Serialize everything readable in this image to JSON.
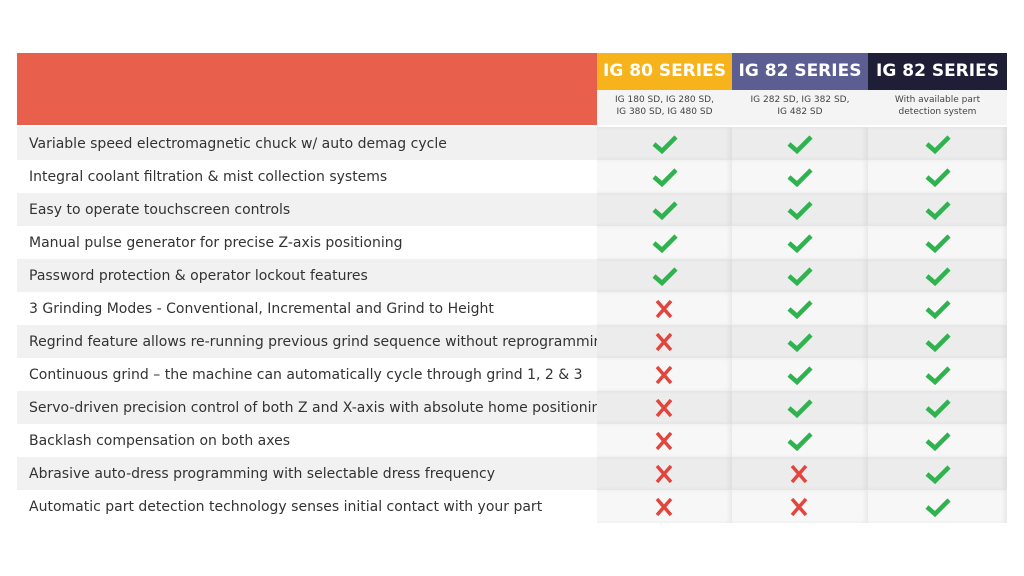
{
  "header": {
    "columns": [
      {
        "title": "IG 80 SERIES",
        "subtitle": "IG 180 SD, IG 280 SD,\nIG 380 SD, IG 480 SD"
      },
      {
        "title": "IG 82 SERIES",
        "subtitle": "IG 282 SD, IG 382 SD,\nIG 482 SD"
      },
      {
        "title": "IG 82 SERIES",
        "subtitle": "With available part\ndetection system"
      }
    ]
  },
  "table": {
    "rows": [
      {
        "feature": "Variable speed electromagnetic chuck w/ auto demag cycle",
        "values": [
          true,
          true,
          true
        ]
      },
      {
        "feature": "Integral coolant filtration & mist collection systems",
        "values": [
          true,
          true,
          true
        ]
      },
      {
        "feature": "Easy to operate touchscreen controls",
        "values": [
          true,
          true,
          true
        ]
      },
      {
        "feature": "Manual pulse generator for precise Z-axis positioning",
        "values": [
          true,
          true,
          true
        ]
      },
      {
        "feature": "Password protection & operator lockout features",
        "values": [
          true,
          true,
          true
        ]
      },
      {
        "feature": "3 Grinding Modes - Conventional, Incremental and Grind to Height",
        "values": [
          false,
          true,
          true
        ]
      },
      {
        "feature": "Regrind feature allows re-running previous grind sequence without reprogramming",
        "values": [
          false,
          true,
          true
        ]
      },
      {
        "feature": "Continuous grind – the machine can automatically cycle through grind 1, 2 & 3",
        "values": [
          false,
          true,
          true
        ]
      },
      {
        "feature": "Servo-driven precision control of both Z and X-axis with absolute home positioning",
        "values": [
          false,
          true,
          true
        ]
      },
      {
        "feature": "Backlash compensation on both axes",
        "values": [
          false,
          true,
          true
        ]
      },
      {
        "feature": "Abrasive auto-dress programming with selectable dress frequency",
        "values": [
          false,
          false,
          true
        ]
      },
      {
        "feature": "Automatic part detection technology senses initial contact with your part",
        "values": [
          false,
          false,
          true
        ]
      }
    ]
  }
}
